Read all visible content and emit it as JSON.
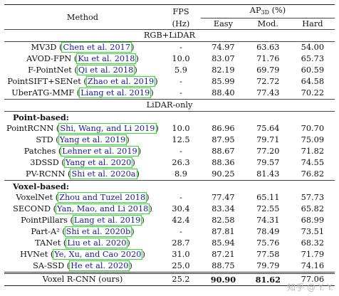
{
  "header": {
    "method": "Method",
    "fps": "FPS",
    "fps_unit": "(Hz)",
    "ap": "AP",
    "ap_sub": "3D",
    "ap_unit": " (%)",
    "easy": "Easy",
    "mod": "Mod.",
    "hard": "Hard"
  },
  "sections": {
    "rgb_lidar": "RGB+LiDAR",
    "lidar_only": "LiDAR-only",
    "point_based": "Point-based:",
    "voxel_based": "Voxel-based:"
  },
  "rgb_rows": [
    {
      "name": "MV3D (",
      "cite": "Chen et al. 2017",
      "close": ")",
      "fps": "-",
      "easy": "74.97",
      "mod": "63.63",
      "hard": "54.00"
    },
    {
      "name": "AVOD-FPN (",
      "cite": "Ku et al. 2018",
      "close": ")",
      "fps": "10.0",
      "easy": "83.07",
      "mod": "71.76",
      "hard": "65.73"
    },
    {
      "name": "F-PointNet (",
      "cite": "Qi et al. 2018",
      "close": ")",
      "fps": "5.9",
      "easy": "82.19",
      "mod": "69.79",
      "hard": "60.59"
    },
    {
      "name": "PointSIFT+SENet (",
      "cite": "Zhao et al. 2019",
      "close": ")",
      "fps": "-",
      "easy": "85.99",
      "mod": "72.72",
      "hard": "64.58"
    },
    {
      "name": "UberATG-MMF (",
      "cite": "Liang et al. 2019",
      "close": ")",
      "fps": "-",
      "easy": "88.40",
      "mod": "77.43",
      "hard": "70.22"
    }
  ],
  "point_rows": [
    {
      "name": "PointRCNN (",
      "cite": "Shi, Wang, and Li 2019",
      "close": ")",
      "fps": "10.0",
      "easy": "86.96",
      "mod": "75.64",
      "hard": "70.70"
    },
    {
      "name": "STD (",
      "cite": "Yang et al. 2019",
      "close": ")",
      "fps": "12.5",
      "easy": "87.95",
      "mod": "79.71",
      "hard": "75.09"
    },
    {
      "name": "Patches (",
      "cite": "Lehner et al. 2019",
      "close": ")",
      "fps": "-",
      "easy": "88.67",
      "mod": "77.20",
      "hard": "71.82"
    },
    {
      "name": "3DSSD (",
      "cite": "Yang et al. 2020",
      "close": ")",
      "fps": "26.3",
      "easy": "88.36",
      "mod": "79.57",
      "hard": "74.55"
    },
    {
      "name": "PV-RCNN (",
      "cite": "Shi et al. 2020a",
      "close": ")",
      "fps": "8.9",
      "easy": "90.25",
      "mod": "81.43",
      "hard": "76.82"
    }
  ],
  "voxel_rows": [
    {
      "name": "VoxelNet (",
      "cite": "Zhou and Tuzel 2018",
      "close": ")",
      "fps": "-",
      "easy": "77.47",
      "mod": "65.11",
      "hard": "57.73"
    },
    {
      "name": "SECOND (",
      "cite": "Yan, Mao, and Li 2018",
      "close": ")",
      "fps": "30.4",
      "easy": "83.34",
      "mod": "72.55",
      "hard": "65.82"
    },
    {
      "name": "PointPillars (",
      "cite": "Lang et al. 2019",
      "close": ")",
      "fps": "42.4",
      "easy": "82.58",
      "mod": "74.31",
      "hard": "68.99"
    },
    {
      "name": "Part-A² (",
      "cite": "Shi et al. 2020b",
      "close": ")",
      "fps": "-",
      "easy": "87.81",
      "mod": "78.49",
      "hard": "73.51"
    },
    {
      "name": "TANet (",
      "cite": "Liu et al. 2020",
      "close": ")",
      "fps": "28.7",
      "easy": "85.94",
      "mod": "75.76",
      "hard": "68.32"
    },
    {
      "name": "HVNet (",
      "cite": "Ye, Xu, and Cao 2020",
      "close": ")",
      "fps": "31.0",
      "easy": "87.21",
      "mod": "77.58",
      "hard": "71.79"
    },
    {
      "name": "SA-SSD (",
      "cite": "He et al. 2020",
      "close": ")",
      "fps": "25.0",
      "easy": "88.75",
      "mod": "79.79",
      "hard": "74.16"
    }
  ],
  "ours": {
    "name": "Voxel R-CNN (ours)",
    "fps": "25.2",
    "easy": "90.90",
    "mod": "81.62",
    "hard": "77.06"
  },
  "watermark": "知乎 @ Y. Y."
}
